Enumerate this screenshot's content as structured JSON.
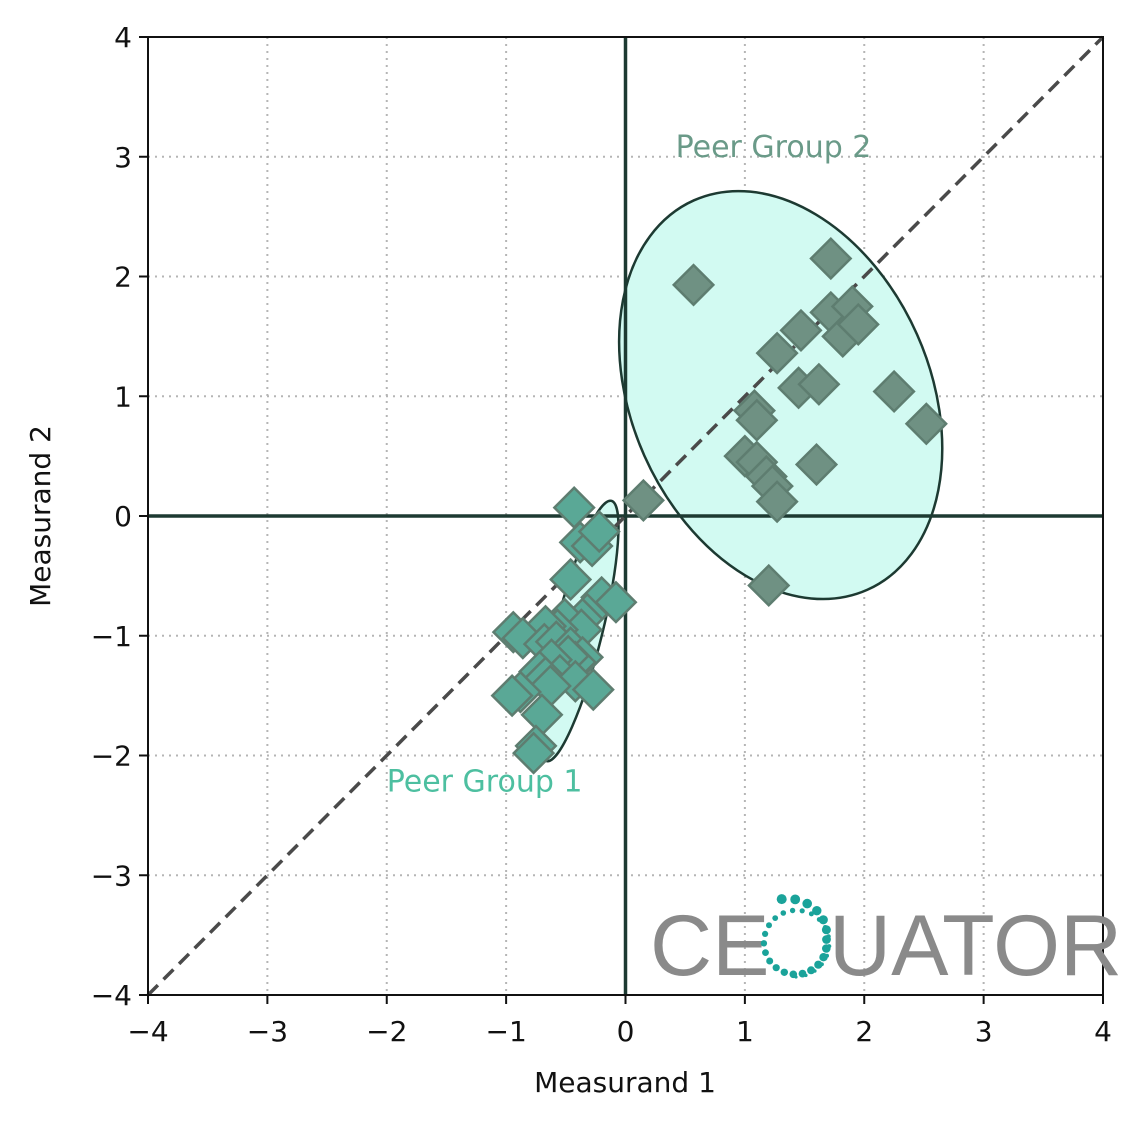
{
  "chart_data": {
    "type": "scatter",
    "xlabel": "Measurand 1",
    "ylabel": "Measurand 2",
    "xlim": [
      -4,
      4
    ],
    "ylim": [
      -4,
      4
    ],
    "xticks": [
      -4,
      -3,
      -2,
      -1,
      0,
      1,
      2,
      3,
      4
    ],
    "yticks": [
      -4,
      -3,
      -2,
      -1,
      0,
      1,
      2,
      3,
      4
    ],
    "tick_labels": [
      "−4",
      "−3",
      "−2",
      "−1",
      "0",
      "1",
      "2",
      "3",
      "4"
    ],
    "grid": true,
    "identity_line": true,
    "groups": [
      {
        "label": "Peer Group 1",
        "label_position": [
          -2.0,
          -2.3
        ],
        "label_color": "#4dbfa0",
        "marker_color": "#5aa896",
        "ellipse": {
          "center": [
            -0.39,
            -0.96
          ],
          "rx": 0.195,
          "ry": 1.12,
          "angle_deg": 14
        },
        "points": [
          [
            -0.43,
            0.07
          ],
          [
            -0.38,
            -0.22
          ],
          [
            -0.28,
            -0.25
          ],
          [
            -0.22,
            -0.13
          ],
          [
            -0.46,
            -0.53
          ],
          [
            -0.2,
            -0.68
          ],
          [
            -0.08,
            -0.72
          ],
          [
            -0.32,
            -0.82
          ],
          [
            -0.36,
            -0.86
          ],
          [
            -0.51,
            -0.86
          ],
          [
            -0.37,
            -0.95
          ],
          [
            -0.57,
            -0.95
          ],
          [
            -0.67,
            -0.92
          ],
          [
            -0.94,
            -0.97
          ],
          [
            -0.86,
            -1.02
          ],
          [
            -0.68,
            -1.07
          ],
          [
            -0.58,
            -1.05
          ],
          [
            -0.46,
            -1.1
          ],
          [
            -0.36,
            -1.18
          ],
          [
            -0.42,
            -1.22
          ],
          [
            -0.48,
            -1.17
          ],
          [
            -0.62,
            -1.2
          ],
          [
            -0.72,
            -1.3
          ],
          [
            -0.55,
            -1.33
          ],
          [
            -0.67,
            -1.35
          ],
          [
            -0.42,
            -1.38
          ],
          [
            -0.63,
            -1.42
          ],
          [
            -0.27,
            -1.45
          ],
          [
            -0.88,
            -1.47
          ],
          [
            -0.95,
            -1.5
          ],
          [
            -0.7,
            -1.66
          ],
          [
            -0.75,
            -1.92
          ],
          [
            -0.77,
            -1.98
          ]
        ]
      },
      {
        "label": "Peer Group 2",
        "label_position": [
          0.42,
          3.0
        ],
        "label_color": "#6a9a88",
        "marker_color": "#6f9183",
        "ellipse": {
          "center": [
            1.3,
            1.01
          ],
          "rx": 1.25,
          "ry": 1.78,
          "angle_deg": -24
        },
        "points": [
          [
            0.15,
            0.13
          ],
          [
            0.57,
            1.93
          ],
          [
            1.27,
            1.36
          ],
          [
            1.47,
            1.55
          ],
          [
            1.72,
            2.15
          ],
          [
            1.72,
            1.7
          ],
          [
            1.82,
            1.5
          ],
          [
            1.9,
            1.75
          ],
          [
            1.95,
            1.6
          ],
          [
            2.25,
            1.04
          ],
          [
            2.52,
            0.77
          ],
          [
            1.45,
            1.07
          ],
          [
            1.62,
            1.1
          ],
          [
            1.08,
            0.88
          ],
          [
            1.1,
            0.8
          ],
          [
            1.0,
            0.5
          ],
          [
            1.1,
            0.45
          ],
          [
            1.18,
            0.33
          ],
          [
            1.23,
            0.25
          ],
          [
            1.27,
            0.12
          ],
          [
            1.6,
            0.43
          ],
          [
            1.2,
            -0.58
          ]
        ]
      }
    ]
  },
  "logo": {
    "text_left": "CE",
    "text_right": "UATOR",
    "accent_color": "#1aa39a",
    "text_color": "#8a8a8a"
  },
  "colors": {
    "ellipse_fill": "#d2faf2",
    "ellipse_stroke": "#1d3a32",
    "axis_dark": "#1d3a32",
    "identity_line": "#4a4a4a",
    "grid": "#b5b5b5"
  }
}
